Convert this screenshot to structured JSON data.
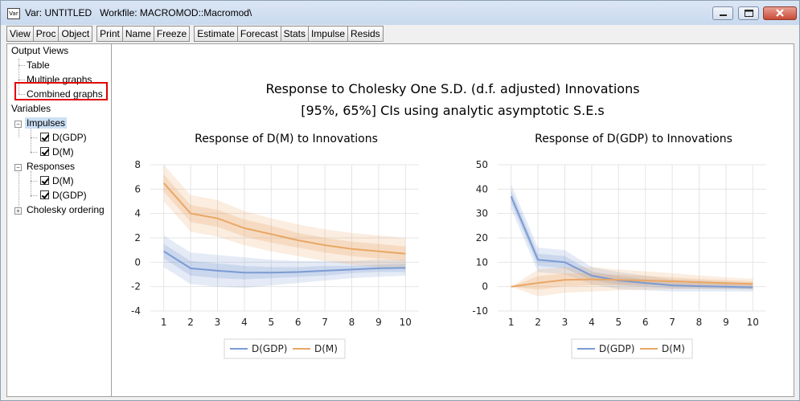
{
  "window": {
    "icon_label": "Var",
    "title": "Var: UNTITLED   Workfile: MACROMOD::Macromod\\"
  },
  "toolbar": {
    "buttons": [
      "View",
      "Proc",
      "Object",
      "Print",
      "Name",
      "Freeze",
      "Estimate",
      "Forecast",
      "Stats",
      "Impulse",
      "Resids"
    ]
  },
  "tree": {
    "output_views": "Output Views",
    "table": "Table",
    "multiple_graphs": "Multiple graphs",
    "combined_graphs": "Combined graphs",
    "variables": "Variables",
    "impulses": "Impulses",
    "impulse_gdp": "D(GDP)",
    "impulse_m": "D(M)",
    "responses": "Responses",
    "response_m": "D(M)",
    "response_gdp": "D(GDP)",
    "cholesky_ordering": "Cholesky ordering"
  },
  "graph": {
    "title_line1": "Response to Cholesky One S.D. (d.f. adjusted) Innovations",
    "title_line2": "[95%, 65%] CIs using analytic asymptotic S.E.s"
  },
  "colors": {
    "gdp": "#7b9bd3",
    "m": "#e9a766"
  },
  "chart_data": [
    {
      "type": "line",
      "title": "Response of D(M) to Innovations",
      "x": [
        1,
        2,
        3,
        4,
        5,
        6,
        7,
        8,
        9,
        10
      ],
      "ylim": [
        -4,
        8
      ],
      "yticks": [
        -4,
        -2,
        0,
        2,
        4,
        6,
        8
      ],
      "grid": true,
      "legend": "bottom-center",
      "series": [
        {
          "name": "D(GDP)",
          "values": [
            0.9,
            -0.5,
            -0.7,
            -0.85,
            -0.85,
            -0.8,
            -0.7,
            -0.6,
            -0.5,
            -0.45
          ],
          "ci95_lower": [
            -0.4,
            -1.8,
            -2.0,
            -2.1,
            -1.9,
            -1.7,
            -1.5,
            -1.3,
            -1.2,
            -1.1
          ],
          "ci95_upper": [
            2.2,
            0.8,
            0.6,
            0.4,
            0.2,
            0.1,
            0.1,
            0.1,
            0.2,
            0.2
          ],
          "ci65_lower": [
            0.3,
            -1.1,
            -1.3,
            -1.4,
            -1.3,
            -1.2,
            -1.1,
            -0.9,
            -0.8,
            -0.8
          ],
          "ci65_upper": [
            1.5,
            0.1,
            -0.1,
            -0.3,
            -0.4,
            -0.4,
            -0.3,
            -0.3,
            -0.2,
            -0.1
          ]
        },
        {
          "name": "D(M)",
          "values": [
            6.5,
            4.0,
            3.6,
            2.8,
            2.3,
            1.8,
            1.4,
            1.1,
            0.9,
            0.7
          ],
          "ci95_lower": [
            5.0,
            2.5,
            2.1,
            1.4,
            0.9,
            0.5,
            0.1,
            -0.2,
            -0.4,
            -0.6
          ],
          "ci95_upper": [
            8.0,
            5.5,
            5.1,
            4.2,
            3.6,
            3.1,
            2.7,
            2.4,
            2.2,
            2.0
          ],
          "ci65_lower": [
            5.8,
            3.3,
            2.9,
            2.1,
            1.6,
            1.2,
            0.8,
            0.5,
            0.3,
            0.1
          ],
          "ci65_upper": [
            7.2,
            4.7,
            4.3,
            3.5,
            3.0,
            2.4,
            2.0,
            1.7,
            1.5,
            1.3
          ]
        }
      ]
    },
    {
      "type": "line",
      "title": "Response of D(GDP) to Innovations",
      "x": [
        1,
        2,
        3,
        4,
        5,
        6,
        7,
        8,
        9,
        10
      ],
      "ylim": [
        -10,
        50
      ],
      "yticks": [
        -10,
        0,
        10,
        20,
        30,
        40,
        50
      ],
      "grid": true,
      "legend": "bottom-center",
      "series": [
        {
          "name": "D(GDP)",
          "values": [
            37,
            11,
            10,
            4.5,
            2.5,
            1.5,
            0.5,
            0.2,
            0,
            -0.3
          ],
          "ci95_lower": [
            32,
            6,
            5,
            1,
            -1,
            -1.5,
            -2,
            -2,
            -2,
            -2
          ],
          "ci95_upper": [
            42,
            16,
            15,
            8,
            6,
            4.5,
            3,
            2.5,
            2,
            1.5
          ],
          "ci65_lower": [
            34.5,
            8.5,
            7.5,
            2.7,
            0.7,
            0,
            -0.8,
            -0.9,
            -1,
            -1.2
          ],
          "ci65_upper": [
            39.5,
            13.5,
            12.5,
            6.3,
            4.3,
            3,
            1.8,
            1.3,
            1,
            0.6
          ]
        },
        {
          "name": "D(M)",
          "values": [
            0,
            1.5,
            2.8,
            3,
            2.8,
            2.5,
            2.2,
            1.8,
            1.4,
            1.1
          ],
          "ci95_lower": [
            0,
            -4,
            -2.5,
            -2,
            -1.5,
            -1.3,
            -1.1,
            -1,
            -1,
            -1
          ],
          "ci95_upper": [
            0,
            7,
            8,
            8,
            7,
            6.3,
            5.5,
            4.6,
            3.8,
            3.2
          ],
          "ci65_lower": [
            0,
            -1.3,
            0.2,
            0.5,
            0.7,
            0.6,
            0.6,
            0.4,
            0.2,
            0
          ],
          "ci65_upper": [
            0,
            4.3,
            5.4,
            5.5,
            4.9,
            4.4,
            3.8,
            3.2,
            2.6,
            2.2
          ]
        }
      ]
    }
  ]
}
